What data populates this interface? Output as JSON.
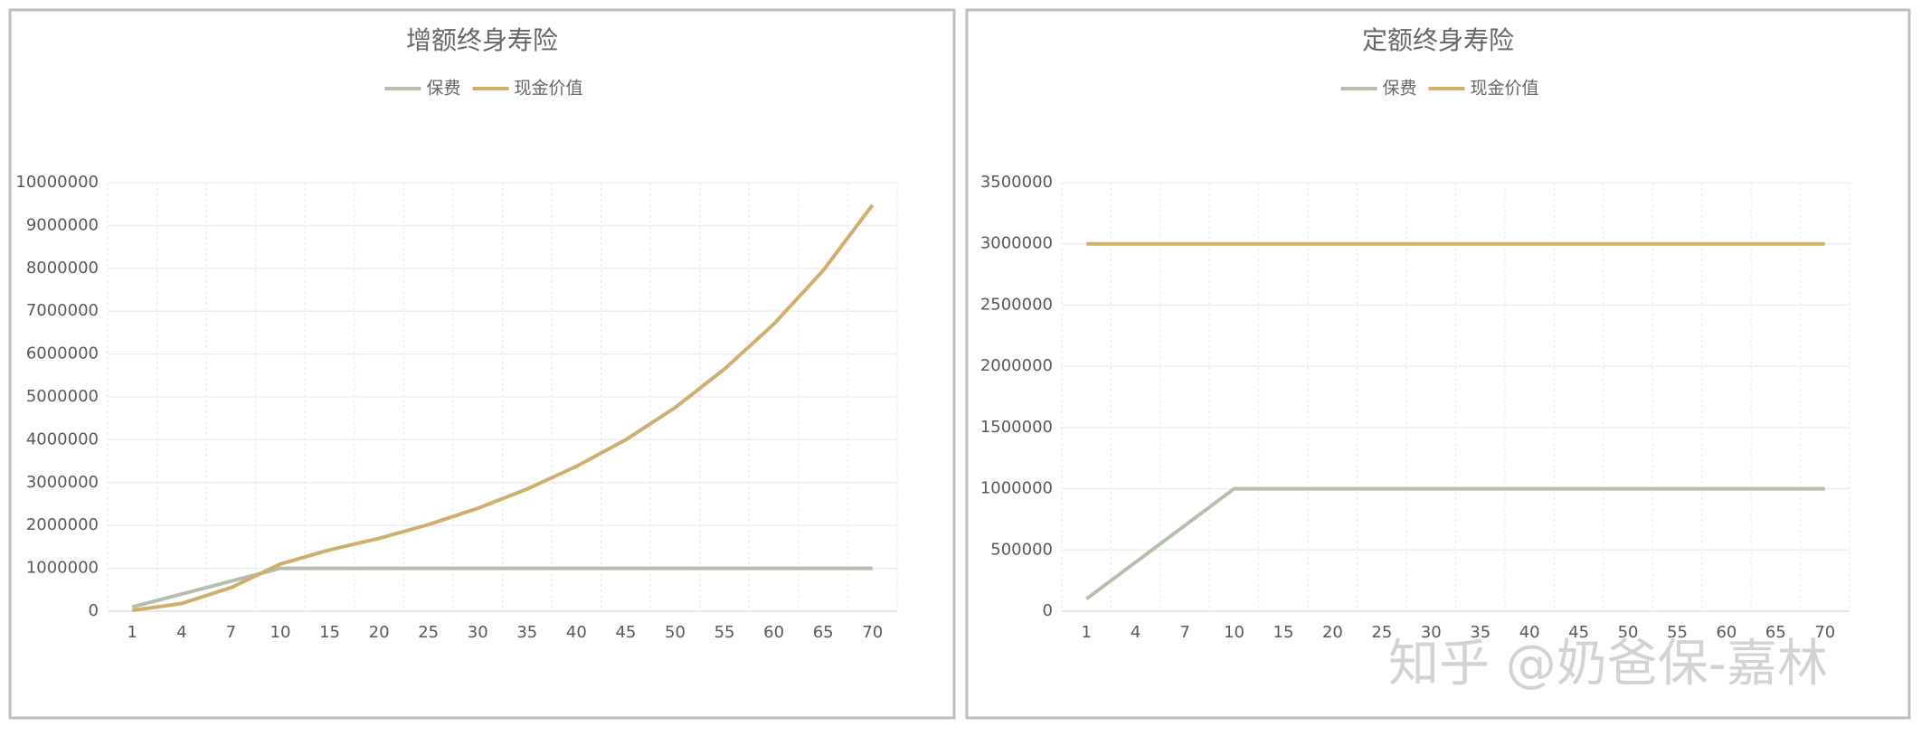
{
  "chart_data": [
    {
      "type": "line",
      "title": "增额终身寿险",
      "categories": [
        "1",
        "4",
        "7",
        "10",
        "15",
        "20",
        "25",
        "30",
        "35",
        "40",
        "45",
        "50",
        "55",
        "60",
        "65",
        "70"
      ],
      "series": [
        {
          "name": "保费",
          "color": "#b3bfac",
          "values": [
            100000,
            400000,
            700000,
            1000000,
            1000000,
            1000000,
            1000000,
            1000000,
            1000000,
            1000000,
            1000000,
            1000000,
            1000000,
            1000000,
            1000000,
            1000000
          ]
        },
        {
          "name": "现金价值",
          "color": "#cfae6e",
          "values": [
            20000,
            180000,
            550000,
            1100000,
            1430000,
            1700000,
            2020000,
            2400000,
            2850000,
            3380000,
            4000000,
            4750000,
            5650000,
            6700000,
            7950000,
            9480000
          ]
        }
      ],
      "ylim": [
        0,
        10000000
      ],
      "yticks": [
        0,
        1000000,
        2000000,
        3000000,
        4000000,
        5000000,
        6000000,
        7000000,
        8000000,
        9000000,
        10000000
      ],
      "grid": true,
      "legend": "top"
    },
    {
      "type": "line",
      "title": "定额终身寿险",
      "categories": [
        "1",
        "4",
        "7",
        "10",
        "15",
        "20",
        "25",
        "30",
        "35",
        "40",
        "45",
        "50",
        "55",
        "60",
        "65",
        "70"
      ],
      "series": [
        {
          "name": "保费",
          "color": "#b3bfac",
          "values": [
            100000,
            400000,
            700000,
            1000000,
            1000000,
            1000000,
            1000000,
            1000000,
            1000000,
            1000000,
            1000000,
            1000000,
            1000000,
            1000000,
            1000000,
            1000000
          ]
        },
        {
          "name": "现金价值",
          "color": "#cfae6e",
          "values": [
            3000000,
            3000000,
            3000000,
            3000000,
            3000000,
            3000000,
            3000000,
            3000000,
            3000000,
            3000000,
            3000000,
            3000000,
            3000000,
            3000000,
            3000000,
            3000000
          ]
        }
      ],
      "ylim": [
        0,
        3500000
      ],
      "yticks": [
        0,
        500000,
        1000000,
        1500000,
        2000000,
        2500000,
        3000000,
        3500000
      ],
      "grid": true,
      "legend": "top"
    }
  ],
  "watermark": "知乎 @奶爸保-嘉林"
}
